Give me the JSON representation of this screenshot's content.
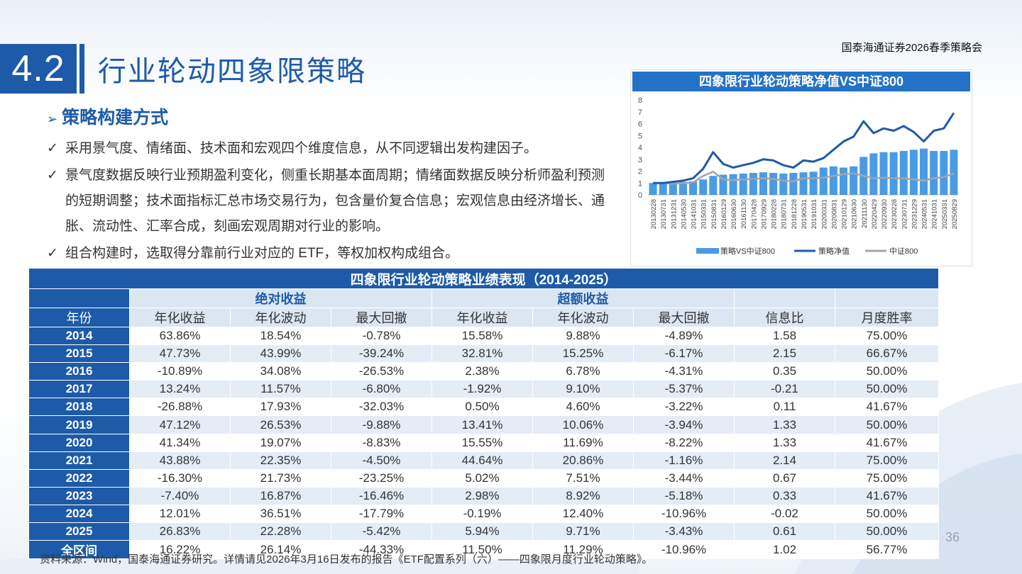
{
  "brand": "国泰海通证券2026春季策略会",
  "section_number": "4.2",
  "page_title": "行业轮动四象限策略",
  "subheading": "策略构建方式",
  "bullets": [
    "采用景气度、情绪面、技术面和宏观四个维度信息，从不同逻辑出发构建因子。",
    "景气度数据反映行业预期盈利变化，侧重长期基本面周期；情绪面数据反映分析师盈利预测的短期调整；技术面指标汇总市场交易行为，包含量价复合信息；宏观信息由经济增长、通胀、流动性、汇率合成，刻画宏观周期对行业的影响。",
    "组合构建时，选取得分靠前行业对应的 ETF，等权加权构成组合。"
  ],
  "colors": {
    "primary": "#1d5ba8",
    "chart_blue": "#2372c8",
    "bar_blue": "#4a9be3",
    "gray_line": "#a5a5a5"
  },
  "chart_data": {
    "type": "line",
    "title": "四象限行业轮动策略净值VS中证800",
    "ylim": [
      0,
      8
    ],
    "yticks": [
      "0",
      "1",
      "2",
      "3",
      "4",
      "5",
      "6",
      "7",
      "8"
    ],
    "x_tick_labels": [
      "20130228",
      "20130731",
      "20131231",
      "20140530",
      "20141031",
      "20150331",
      "20150831",
      "20160129",
      "20160630",
      "20161130",
      "20170428",
      "20170929",
      "20180228",
      "20180731",
      "20181228",
      "20190531",
      "20191031",
      "20200331",
      "20200831",
      "20210129",
      "20210630",
      "20211130",
      "20220429",
      "20220930",
      "20230228",
      "20230731",
      "20231229",
      "20240531",
      "20241031",
      "20250331",
      "20250829"
    ],
    "legend": [
      "策略VS中证800",
      "策略净值",
      "中证800"
    ],
    "series": [
      {
        "name": "策略VS中证800",
        "kind": "bar",
        "values": [
          1.0,
          1.0,
          1.05,
          1.1,
          1.15,
          1.3,
          1.6,
          1.7,
          1.75,
          1.8,
          1.85,
          1.9,
          1.85,
          1.8,
          1.85,
          1.9,
          1.95,
          2.3,
          2.4,
          2.3,
          2.4,
          3.2,
          3.5,
          3.6,
          3.6,
          3.7,
          3.8,
          3.9,
          3.7,
          3.7,
          3.8
        ]
      },
      {
        "name": "策略净值",
        "kind": "line",
        "values": [
          1.0,
          1.0,
          1.1,
          1.2,
          1.4,
          2.2,
          3.6,
          2.6,
          2.3,
          2.5,
          2.7,
          3.0,
          2.9,
          2.5,
          2.3,
          2.9,
          2.8,
          3.1,
          3.8,
          4.5,
          4.9,
          6.2,
          5.2,
          5.6,
          5.4,
          5.8,
          5.3,
          4.5,
          5.4,
          5.6,
          6.9
        ]
      },
      {
        "name": "中证800",
        "kind": "line",
        "values": [
          1.0,
          1.0,
          0.95,
          0.98,
          1.05,
          1.6,
          1.95,
          1.3,
          1.25,
          1.3,
          1.35,
          1.4,
          1.35,
          1.2,
          1.15,
          1.4,
          1.4,
          1.45,
          1.6,
          1.75,
          1.8,
          1.6,
          1.4,
          1.45,
          1.4,
          1.4,
          1.3,
          1.2,
          1.4,
          1.5,
          1.8
        ]
      }
    ]
  },
  "table": {
    "title": "四象限行业轮动策略业绩表现（2014-2025）",
    "group_abs": "绝对收益",
    "group_excess": "超额收益",
    "columns": [
      "年份",
      "年化收益",
      "年化波动",
      "最大回撤",
      "年化收益",
      "年化波动",
      "最大回撤",
      "信息比",
      "月度胜率"
    ],
    "rows": [
      [
        "2014",
        "63.86%",
        "18.54%",
        "-0.78%",
        "15.58%",
        "9.88%",
        "-4.89%",
        "1.58",
        "75.00%"
      ],
      [
        "2015",
        "47.73%",
        "43.99%",
        "-39.24%",
        "32.81%",
        "15.25%",
        "-6.17%",
        "2.15",
        "66.67%"
      ],
      [
        "2016",
        "-10.89%",
        "34.08%",
        "-26.53%",
        "2.38%",
        "6.78%",
        "-4.31%",
        "0.35",
        "50.00%"
      ],
      [
        "2017",
        "13.24%",
        "11.57%",
        "-6.80%",
        "-1.92%",
        "9.10%",
        "-5.37%",
        "-0.21",
        "50.00%"
      ],
      [
        "2018",
        "-26.88%",
        "17.93%",
        "-32.03%",
        "0.50%",
        "4.60%",
        "-3.22%",
        "0.11",
        "41.67%"
      ],
      [
        "2019",
        "47.12%",
        "26.53%",
        "-9.88%",
        "13.41%",
        "10.06%",
        "-3.94%",
        "1.33",
        "50.00%"
      ],
      [
        "2020",
        "41.34%",
        "19.07%",
        "-8.83%",
        "15.55%",
        "11.69%",
        "-8.22%",
        "1.33",
        "41.67%"
      ],
      [
        "2021",
        "43.88%",
        "22.35%",
        "-4.50%",
        "44.64%",
        "20.86%",
        "-1.16%",
        "2.14",
        "75.00%"
      ],
      [
        "2022",
        "-16.30%",
        "21.73%",
        "-23.25%",
        "5.02%",
        "7.51%",
        "-3.44%",
        "0.67",
        "75.00%"
      ],
      [
        "2023",
        "-7.40%",
        "16.87%",
        "-16.46%",
        "2.98%",
        "8.92%",
        "-5.18%",
        "0.33",
        "41.67%"
      ],
      [
        "2024",
        "12.01%",
        "36.51%",
        "-17.79%",
        "-0.19%",
        "12.40%",
        "-10.96%",
        "-0.02",
        "50.00%"
      ],
      [
        "2025",
        "26.83%",
        "22.28%",
        "-5.42%",
        "5.94%",
        "9.71%",
        "-3.43%",
        "0.61",
        "50.00%"
      ],
      [
        "全区间",
        "16.22%",
        "26.14%",
        "-44.33%",
        "11.50%",
        "11.29%",
        "-10.96%",
        "1.02",
        "56.77%"
      ]
    ]
  },
  "source": "资料来源：Wind，国泰海通证券研究。详情请见2026年3月16日发布的报告《ETF配置系列（六）——四象限月度行业轮动策略》。",
  "page_number": "36"
}
